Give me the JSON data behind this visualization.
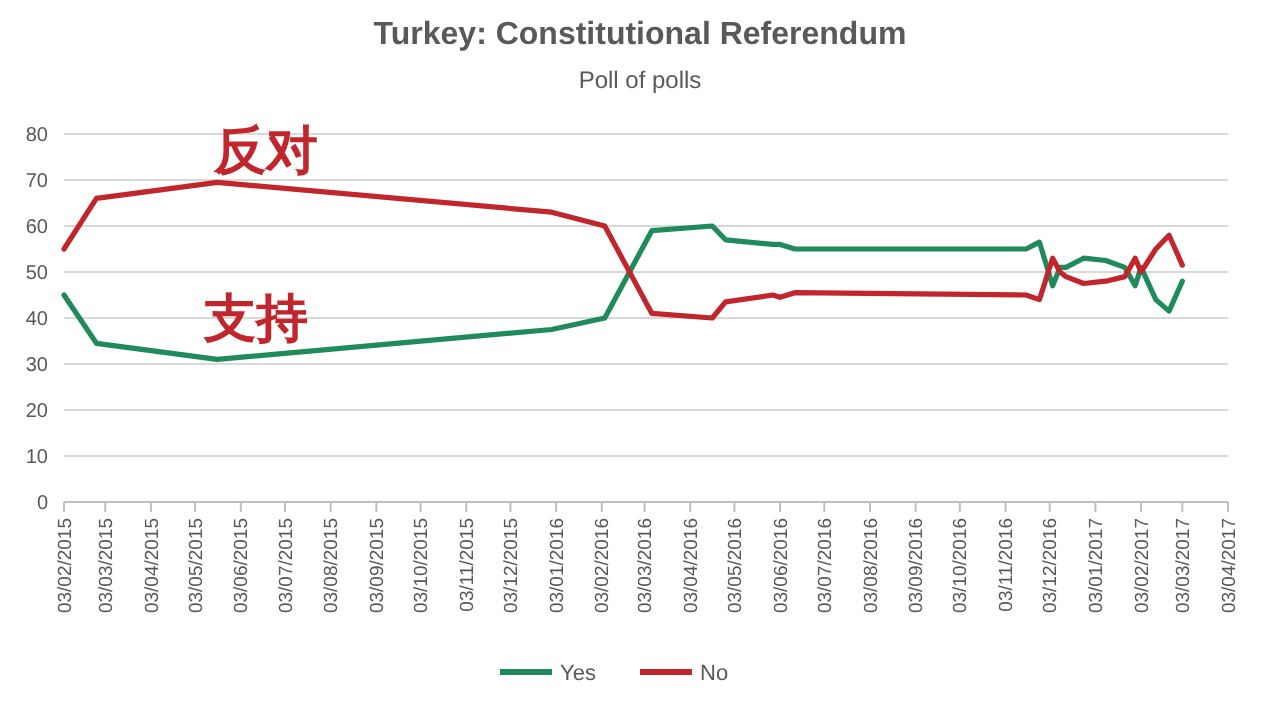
{
  "chart_data": {
    "type": "line",
    "title": "Turkey: Constitutional Referendum",
    "subtitle": "Poll of polls",
    "x": [
      "2015-02-03",
      "2015-02-25",
      "2015-05-18",
      "2015-12-31",
      "2016-02-05",
      "2016-03-08",
      "2016-04-18",
      "2016-04-27",
      "2016-05-29",
      "2016-06-03",
      "2016-06-13",
      "2016-11-17",
      "2016-11-26",
      "2016-12-05",
      "2016-12-10",
      "2016-12-14",
      "2016-12-26",
      "2017-01-10",
      "2017-01-23",
      "2017-01-30",
      "2017-02-03",
      "2017-02-13",
      "2017-02-22",
      "2017-03-03"
    ],
    "series": [
      {
        "name": "Yes",
        "color": "#1f8a5b",
        "values": [
          45,
          34.5,
          31,
          37.5,
          40,
          59,
          60,
          57,
          56,
          56,
          55,
          55,
          56.5,
          47,
          51,
          51,
          53,
          52.5,
          51,
          47,
          51,
          44,
          41.5,
          48
        ]
      },
      {
        "name": "No",
        "color": "#c0262b",
        "values": [
          55,
          66,
          69.5,
          63,
          60,
          41,
          40,
          43.5,
          45,
          44.5,
          45.5,
          45,
          44,
          53,
          50,
          49,
          47.5,
          48,
          49,
          53,
          50,
          55,
          58,
          51.5
        ]
      }
    ],
    "xlim": [
      "2015-02-03",
      "2017-04-03"
    ],
    "xticks": [
      {
        "value": "2015-02-03",
        "label": "03/02/2015"
      },
      {
        "value": "2015-03-03",
        "label": "03/03/2015"
      },
      {
        "value": "2015-04-03",
        "label": "03/04/2015"
      },
      {
        "value": "2015-05-03",
        "label": "03/05/2015"
      },
      {
        "value": "2015-06-03",
        "label": "03/06/2015"
      },
      {
        "value": "2015-07-03",
        "label": "03/07/2015"
      },
      {
        "value": "2015-08-03",
        "label": "03/08/2015"
      },
      {
        "value": "2015-09-03",
        "label": "03/09/2015"
      },
      {
        "value": "2015-10-03",
        "label": "03/10/2015"
      },
      {
        "value": "2015-11-03",
        "label": "03/11/2015"
      },
      {
        "value": "2015-12-03",
        "label": "03/12/2015"
      },
      {
        "value": "2016-01-03",
        "label": "03/01/2016"
      },
      {
        "value": "2016-02-03",
        "label": "03/02/2016"
      },
      {
        "value": "2016-03-03",
        "label": "03/03/2016"
      },
      {
        "value": "2016-04-03",
        "label": "03/04/2016"
      },
      {
        "value": "2016-05-03",
        "label": "03/05/2016"
      },
      {
        "value": "2016-06-03",
        "label": "03/06/2016"
      },
      {
        "value": "2016-07-03",
        "label": "03/07/2016"
      },
      {
        "value": "2016-08-03",
        "label": "03/08/2016"
      },
      {
        "value": "2016-09-03",
        "label": "03/09/2016"
      },
      {
        "value": "2016-10-03",
        "label": "03/10/2016"
      },
      {
        "value": "2016-11-03",
        "label": "03/11/2016"
      },
      {
        "value": "2016-12-03",
        "label": "03/12/2016"
      },
      {
        "value": "2017-01-03",
        "label": "03/01/2017"
      },
      {
        "value": "2017-02-03",
        "label": "03/02/2017"
      },
      {
        "value": "2017-03-03",
        "label": "03/03/2017"
      },
      {
        "value": "2017-04-03",
        "label": "03/04/2017"
      }
    ],
    "ylim": [
      0,
      80
    ],
    "yticks": [
      0,
      10,
      20,
      30,
      40,
      50,
      60,
      70,
      80
    ],
    "grid": "y",
    "legend": "bottom",
    "marker": "none",
    "line_style": "solid",
    "annotations": [
      "反对",
      "支持"
    ]
  }
}
